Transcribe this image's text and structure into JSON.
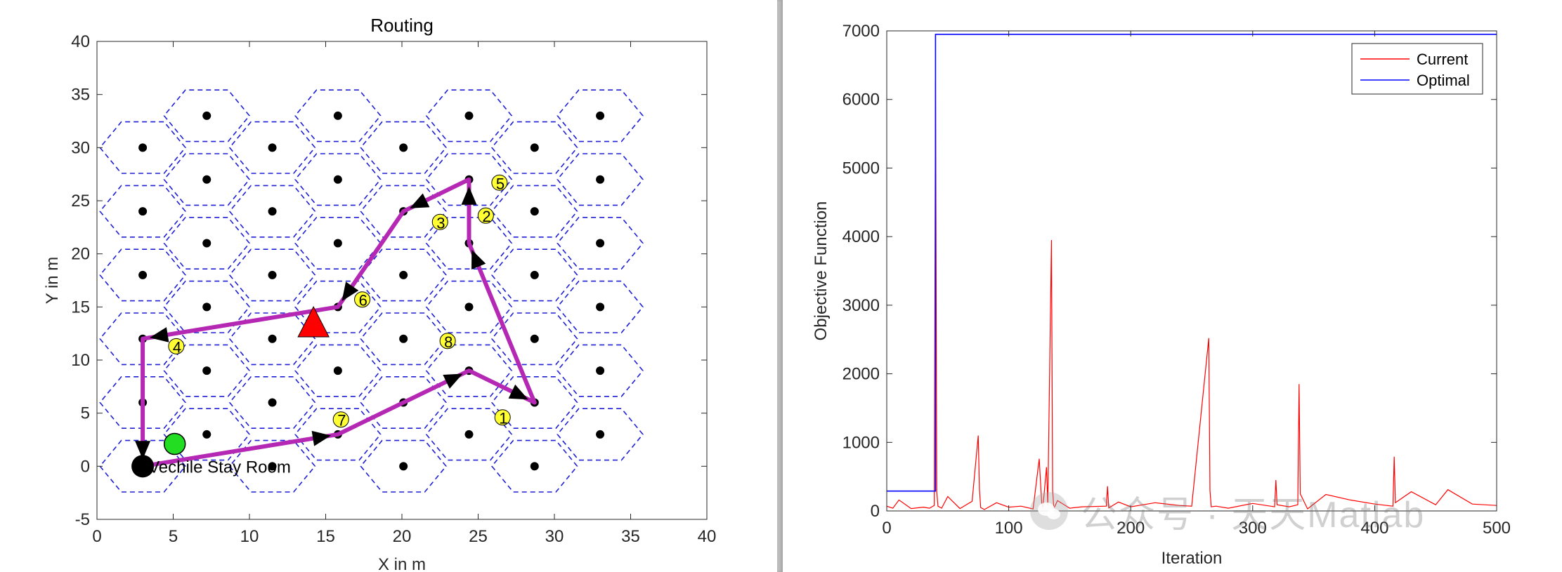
{
  "chart_data": [
    {
      "type": "scatter",
      "title": "Routing",
      "xlabel": "X in m",
      "ylabel": "Y in m",
      "xlim": [
        0,
        40
      ],
      "ylim": [
        -5,
        40
      ],
      "xticks": [
        0,
        5,
        10,
        15,
        20,
        25,
        30,
        35,
        40
      ],
      "yticks": [
        -5,
        0,
        5,
        10,
        15,
        20,
        25,
        30,
        35,
        40
      ],
      "colors": {
        "hexagon_edge": "#1f1fd6",
        "cell_center": "#000000",
        "route": "#b428b4",
        "arrow": "#000000",
        "target": "#ffff33",
        "start": "#22dd22",
        "obstacle": "#ff0000"
      },
      "cell_centers": [
        [
          3,
          30
        ],
        [
          3,
          24
        ],
        [
          3,
          18
        ],
        [
          3,
          12
        ],
        [
          3,
          6
        ],
        [
          3,
          0
        ],
        [
          7.2,
          33
        ],
        [
          7.2,
          27
        ],
        [
          7.2,
          21
        ],
        [
          7.2,
          15
        ],
        [
          7.2,
          9
        ],
        [
          7.2,
          3
        ],
        [
          11.5,
          30
        ],
        [
          11.5,
          24
        ],
        [
          11.5,
          18
        ],
        [
          11.5,
          12
        ],
        [
          11.5,
          6
        ],
        [
          11.5,
          0
        ],
        [
          15.8,
          33
        ],
        [
          15.8,
          27
        ],
        [
          15.8,
          21
        ],
        [
          15.8,
          15
        ],
        [
          15.8,
          9
        ],
        [
          15.8,
          3
        ],
        [
          20.1,
          30
        ],
        [
          20.1,
          24
        ],
        [
          20.1,
          18
        ],
        [
          20.1,
          12
        ],
        [
          20.1,
          6
        ],
        [
          20.1,
          0
        ],
        [
          24.4,
          33
        ],
        [
          24.4,
          27
        ],
        [
          24.4,
          21
        ],
        [
          24.4,
          15
        ],
        [
          24.4,
          9
        ],
        [
          24.4,
          3
        ],
        [
          28.7,
          30
        ],
        [
          28.7,
          24
        ],
        [
          28.7,
          18
        ],
        [
          28.7,
          12
        ],
        [
          28.7,
          6
        ],
        [
          28.7,
          0
        ],
        [
          33,
          33
        ],
        [
          33,
          27
        ],
        [
          33,
          21
        ],
        [
          33,
          15
        ],
        [
          33,
          9
        ],
        [
          33,
          3
        ]
      ],
      "route": [
        [
          3,
          0
        ],
        [
          15.8,
          3
        ],
        [
          24.4,
          9
        ],
        [
          28.7,
          6
        ],
        [
          24.4,
          21
        ],
        [
          24.4,
          27
        ],
        [
          20.1,
          24
        ],
        [
          15.8,
          15
        ],
        [
          3,
          12
        ],
        [
          3,
          0
        ]
      ],
      "targets": [
        {
          "label": "1",
          "x": 26.6,
          "y": 4.6
        },
        {
          "label": "2",
          "x": 25.5,
          "y": 23.6
        },
        {
          "label": "3",
          "x": 22.5,
          "y": 23.0
        },
        {
          "label": "4",
          "x": 5.2,
          "y": 11.3
        },
        {
          "label": "5",
          "x": 26.4,
          "y": 26.7
        },
        {
          "label": "6",
          "x": 17.4,
          "y": 15.7
        },
        {
          "label": "7",
          "x": 16.0,
          "y": 4.4
        },
        {
          "label": "8",
          "x": 23.0,
          "y": 11.8
        }
      ],
      "start": {
        "x": 5.1,
        "y": 2.1
      },
      "obstacle": {
        "x": 14.2,
        "y": 13.3
      },
      "home": {
        "x": 3,
        "y": 0,
        "label": "Vechile Stay Room"
      }
    },
    {
      "type": "line",
      "xlabel": "Iteration",
      "ylabel": "Objective Function",
      "xlim": [
        0,
        500
      ],
      "ylim": [
        0,
        7000
      ],
      "xticks": [
        0,
        100,
        200,
        300,
        400,
        500
      ],
      "yticks": [
        0,
        1000,
        2000,
        3000,
        4000,
        5000,
        6000,
        7000
      ],
      "legend_position": "top-right",
      "colors": {
        "current": "#ff0000",
        "optimal": "#0000ff"
      },
      "series": [
        {
          "name": "Current",
          "x": [
            0,
            5,
            10,
            20,
            30,
            35,
            39,
            40,
            41,
            42,
            45,
            50,
            60,
            70,
            75,
            76,
            77,
            80,
            90,
            100,
            110,
            120,
            125,
            127,
            128,
            131,
            132,
            135,
            136,
            137,
            140,
            150,
            160,
            180,
            181,
            182,
            190,
            200,
            220,
            240,
            250,
            264,
            265,
            266,
            270,
            280,
            300,
            318,
            319,
            320,
            330,
            337,
            338,
            339,
            345,
            360,
            380,
            400,
            415,
            416,
            417,
            430,
            450,
            460,
            480,
            500
          ],
          "y": [
            70,
            40,
            160,
            35,
            55,
            40,
            80,
            6250,
            280,
            70,
            40,
            210,
            35,
            140,
            1100,
            320,
            50,
            20,
            120,
            55,
            70,
            30,
            760,
            120,
            45,
            640,
            80,
            3950,
            300,
            35,
            150,
            40,
            60,
            70,
            360,
            45,
            130,
            60,
            120,
            80,
            70,
            2520,
            300,
            60,
            70,
            40,
            110,
            60,
            450,
            90,
            60,
            90,
            1850,
            250,
            30,
            240,
            160,
            100,
            70,
            790,
            120,
            280,
            90,
            310,
            100,
            80
          ]
        },
        {
          "name": "Optimal",
          "x": [
            0,
            40,
            40,
            500
          ],
          "y": [
            290,
            290,
            6950,
            6950
          ]
        }
      ]
    }
  ],
  "watermark": {
    "text": "公众号 · 天天Matlab"
  }
}
